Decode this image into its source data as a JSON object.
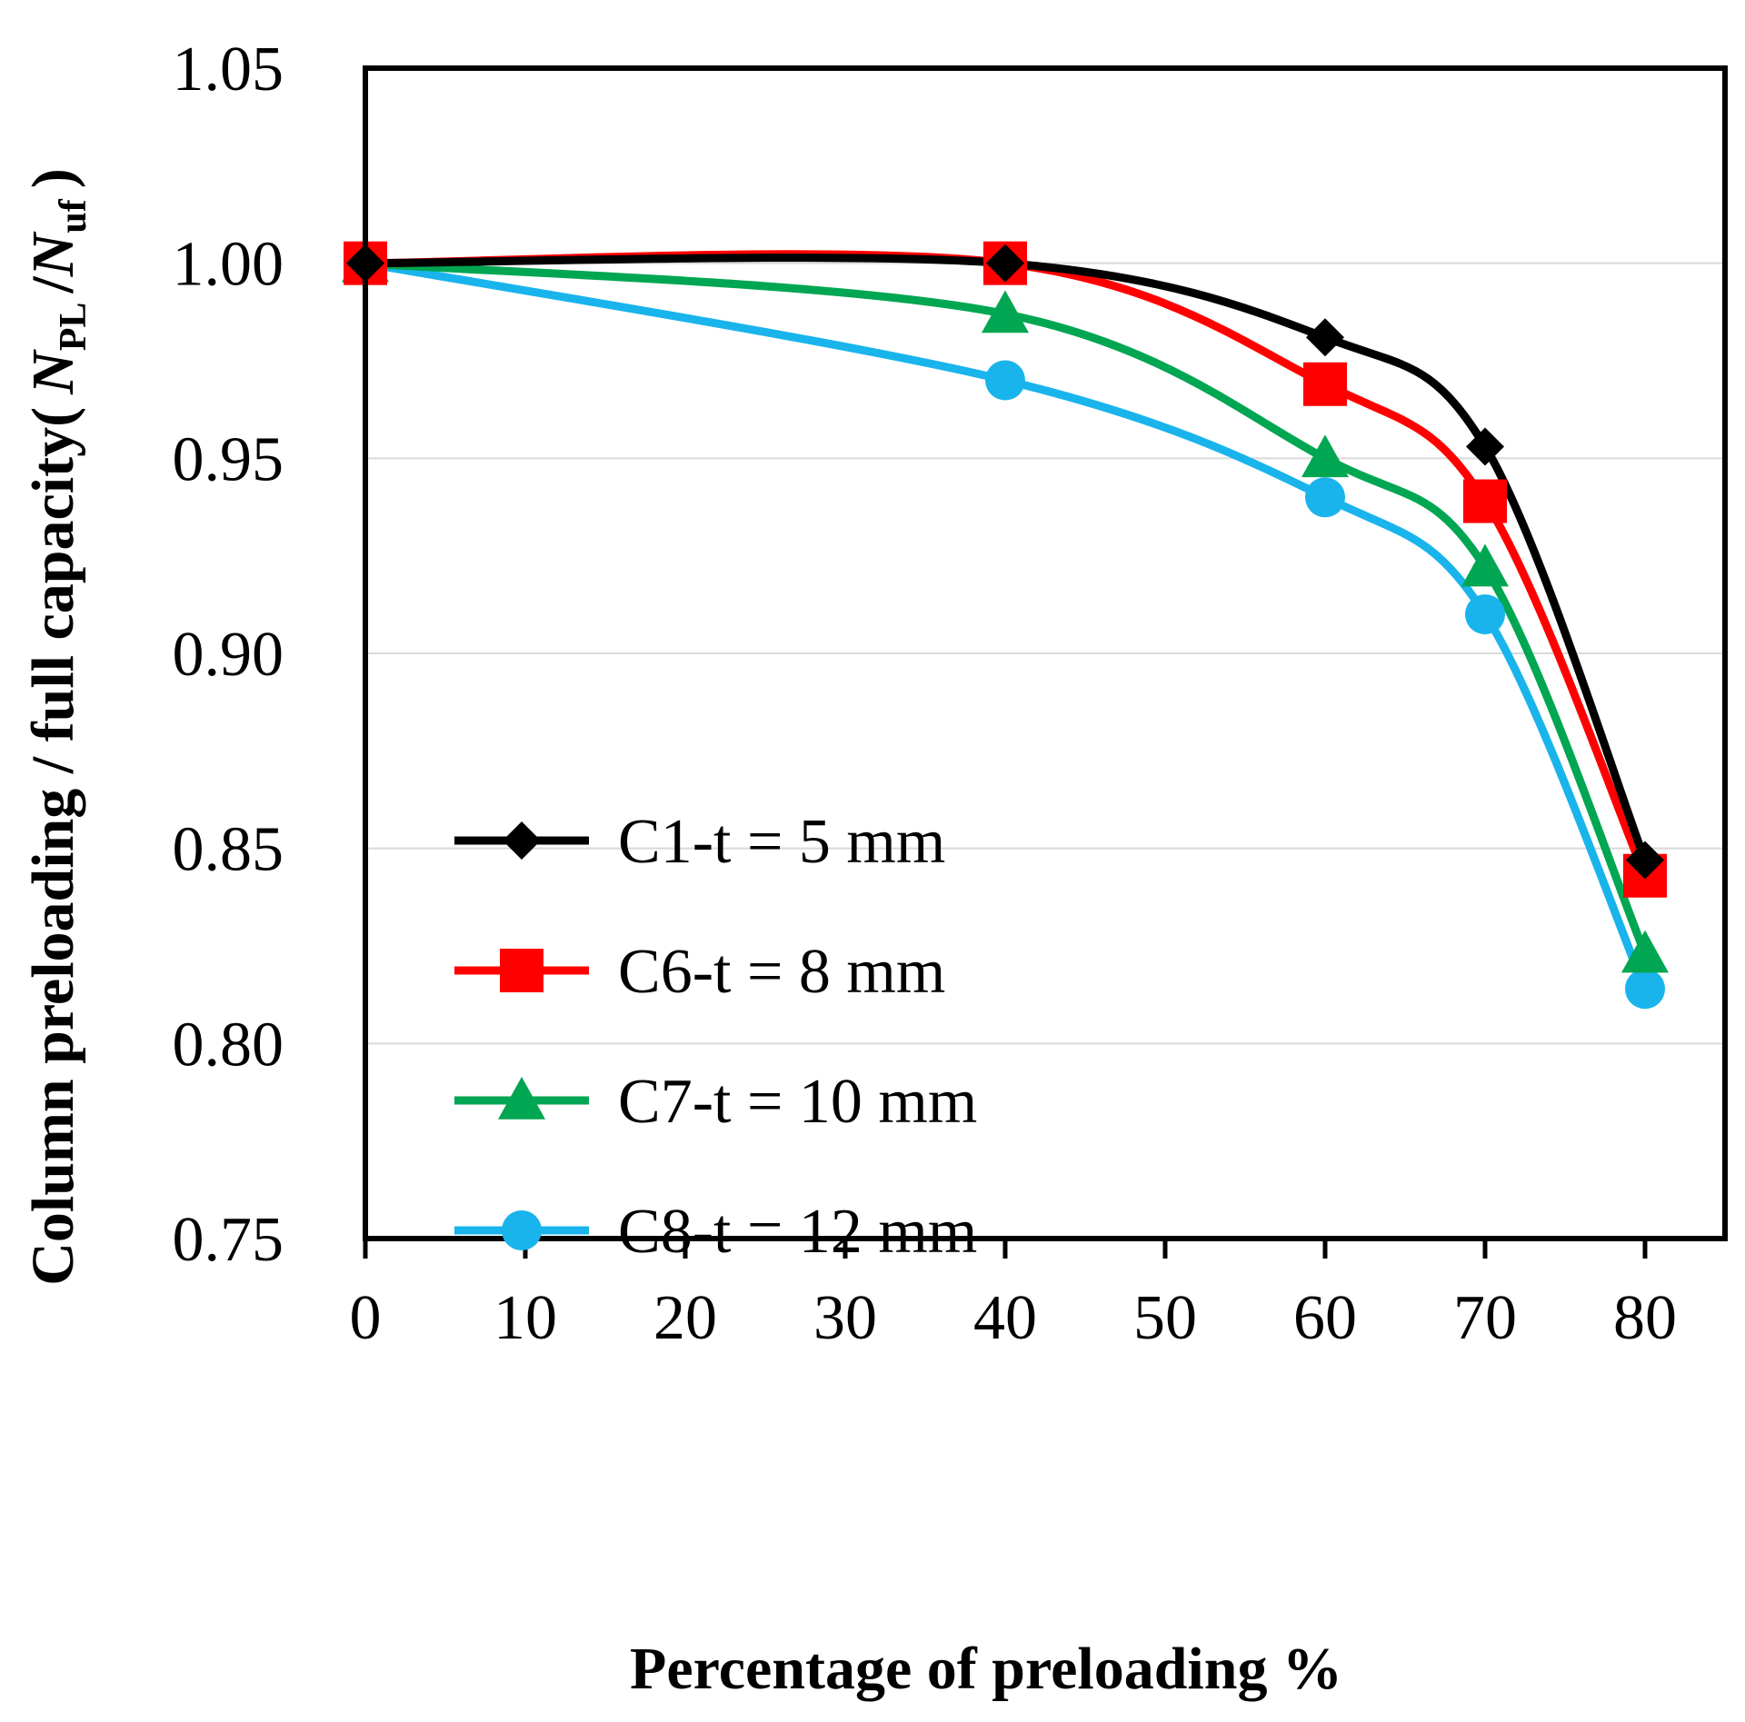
{
  "chart_data": {
    "type": "line",
    "smooth": true,
    "title": "",
    "xlabel": "Percentage of preloading %",
    "ylabel": {
      "prefix": "Column preloading / full capacity(",
      "n1": "N",
      "sub1": "PL",
      "slash": "/",
      "n2": "N",
      "sub2": "uf",
      "suffix": ")"
    },
    "xlim": [
      0,
      85
    ],
    "ylim": [
      0.75,
      1.05
    ],
    "xticks": [
      0,
      10,
      20,
      30,
      40,
      50,
      60,
      70,
      80
    ],
    "xtick_labels": [
      "0",
      "10",
      "20",
      "30",
      "40",
      "50",
      "60",
      "70",
      "80"
    ],
    "yticks": [
      0.75,
      0.8,
      0.85,
      0.9,
      0.95,
      1.0,
      1.05
    ],
    "ytick_labels": [
      "0.75",
      "0.80",
      "0.85",
      "0.90",
      "0.95",
      "1.00",
      "1.05"
    ],
    "grid": "horizontal",
    "legend_position": "lower-left",
    "x": [
      0,
      40,
      60,
      70,
      80
    ],
    "series": [
      {
        "name": "C1-t = 5 mm",
        "color": "#000000",
        "marker": "diamond",
        "values": [
          1.0,
          1.0,
          0.981,
          0.953,
          0.847
        ]
      },
      {
        "name": "C6-t = 8 mm",
        "color": "#ff0000",
        "marker": "square",
        "values": [
          1.0,
          1.0,
          0.969,
          0.939,
          0.843
        ]
      },
      {
        "name": "C7-t = 10 mm",
        "color": "#00a651",
        "marker": "triangle",
        "values": [
          1.0,
          0.987,
          0.95,
          0.922,
          0.823
        ]
      },
      {
        "name": "C8-t = 12 mm",
        "color": "#19b4ec",
        "marker": "circle",
        "values": [
          1.0,
          0.97,
          0.94,
          0.91,
          0.814
        ]
      }
    ]
  }
}
